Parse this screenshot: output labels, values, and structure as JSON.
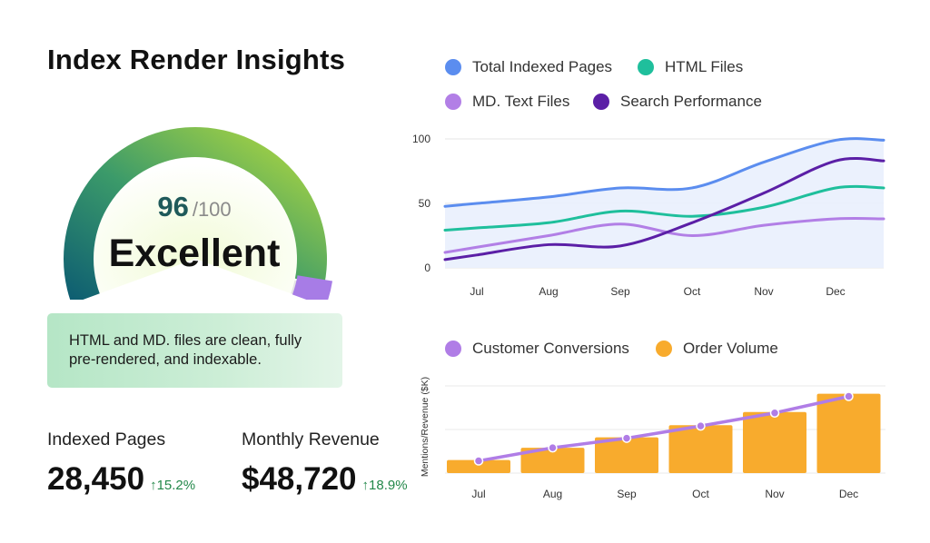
{
  "title": "Index Render Insights",
  "gauge": {
    "score": "96",
    "max": "/100",
    "label": "Excellent",
    "value": 96
  },
  "note": "HTML and MD. files are clean, fully pre-rendered, and indexable.",
  "kpis": [
    {
      "label": "Indexed Pages",
      "value": "28,450",
      "change": "↑15.2%"
    },
    {
      "label": "Monthly Revenue",
      "value": "$48,720",
      "change": "↑18.9%"
    }
  ],
  "colors": {
    "total": "#5b8def",
    "html": "#1fbf9c",
    "md": "#b27fe6",
    "search": "#5b1fa6",
    "conv": "#b07de6",
    "order": "#f8ab2d"
  },
  "chart_data": [
    {
      "type": "line",
      "categories": [
        "Jul",
        "Aug",
        "Sep",
        "Oct",
        "Nov",
        "Dec"
      ],
      "yticks": [
        "100",
        "50",
        "0"
      ],
      "ylim": [
        0,
        100
      ],
      "series": [
        {
          "name": "Total Indexed Pages",
          "color": "#5b8def",
          "values": [
            50,
            55,
            62,
            62,
            82,
            99
          ]
        },
        {
          "name": "HTML Files",
          "color": "#1fbf9c",
          "values": [
            31,
            35,
            44,
            40,
            47,
            62
          ]
        },
        {
          "name": "MD. Text Files",
          "color": "#b27fe6",
          "values": [
            16,
            25,
            34,
            25,
            33,
            38
          ]
        },
        {
          "name": "Search Performance",
          "color": "#5b1fa6",
          "values": [
            10,
            18,
            17,
            35,
            58,
            83
          ]
        }
      ]
    },
    {
      "type": "bar",
      "categories": [
        "Jul",
        "Aug",
        "Sep",
        "Oct",
        "Nov",
        "Dec"
      ],
      "ylabel": "Mentions/Revenue ($K)",
      "ylim": [
        0,
        100
      ],
      "series": [
        {
          "name": "Customer Conversions",
          "color": "#b07de6",
          "values": [
            14,
            29,
            40,
            54,
            69,
            88
          ]
        },
        {
          "name": "Order Volume",
          "color": "#f8ab2d",
          "values": [
            15,
            29,
            41,
            55,
            70,
            91
          ]
        }
      ]
    }
  ]
}
